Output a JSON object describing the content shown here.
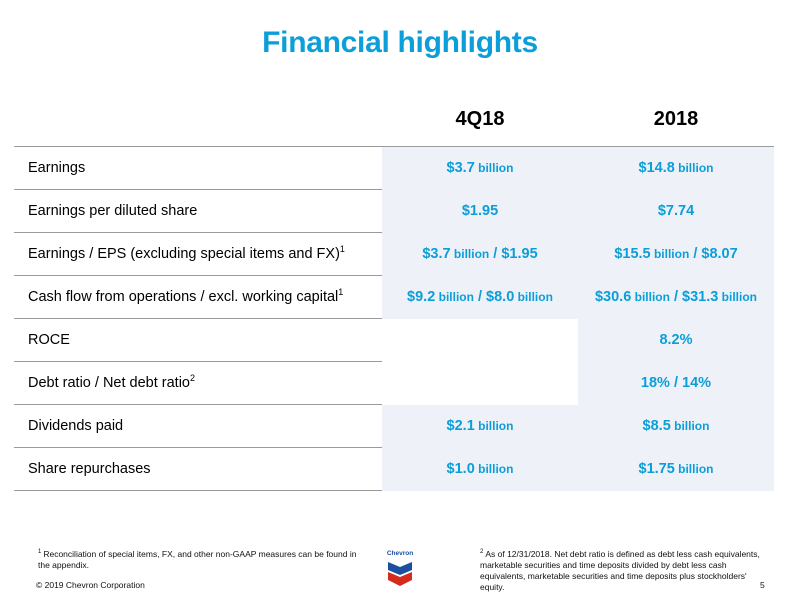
{
  "title": "Financial highlights",
  "columns": [
    "4Q18",
    "2018"
  ],
  "rows": [
    {
      "label": "Earnings",
      "sup": "",
      "q": [
        [
          "$3.7",
          " billion"
        ]
      ],
      "y": [
        [
          "$14.8",
          " billion"
        ]
      ]
    },
    {
      "label": "Earnings per diluted share",
      "sup": "",
      "q": [
        [
          "$1.95",
          ""
        ]
      ],
      "y": [
        [
          "$7.74",
          ""
        ]
      ]
    },
    {
      "label": "Earnings / EPS (excluding special items and FX)",
      "sup": "1",
      "q": [
        [
          "$3.7",
          " billion"
        ],
        [
          " / $1.95",
          ""
        ]
      ],
      "y": [
        [
          "$15.5",
          " billion"
        ],
        [
          " / $8.07",
          ""
        ]
      ]
    },
    {
      "label": "Cash flow from operations / excl. working capital",
      "sup": "1",
      "q": [
        [
          "$9.2",
          " billion"
        ],
        [
          " / $8.0",
          " billion"
        ]
      ],
      "y": [
        [
          "$30.6",
          " billion"
        ],
        [
          " / $31.3",
          " billion"
        ]
      ]
    },
    {
      "label": "ROCE",
      "sup": "",
      "q": [],
      "y": [
        [
          "8.2%",
          ""
        ]
      ]
    },
    {
      "label": "Debt ratio / Net debt ratio",
      "sup": "2",
      "q": [],
      "y": [
        [
          "18% / 14%",
          ""
        ]
      ]
    },
    {
      "label": "Dividends paid",
      "sup": "",
      "q": [
        [
          "$2.1",
          " billion"
        ]
      ],
      "y": [
        [
          "$8.5",
          " billion"
        ]
      ]
    },
    {
      "label": "Share repurchases",
      "sup": "",
      "q": [
        [
          "$1.0",
          " billion"
        ]
      ],
      "y": [
        [
          "$1.75",
          " billion"
        ]
      ]
    }
  ],
  "footnotes": {
    "left_mark": "1",
    "left": "Reconciliation of special items, FX, and other non-GAAP measures can be found in the appendix.",
    "right_mark": "2",
    "right": "As of 12/31/2018.  Net debt ratio is defined as debt less cash equivalents, marketable securities and time deposits divided by debt less cash equivalents, marketable securities and time deposits plus stockholders' equity."
  },
  "logo_text": "Chevron",
  "copyright": "© 2019 Chevron Corporation",
  "page_number": "5",
  "colors": {
    "accent": "#0b9ed8",
    "cell_bg": "#eef2f8",
    "logo_blue": "#1b4fa0",
    "logo_red": "#d52b1e"
  }
}
